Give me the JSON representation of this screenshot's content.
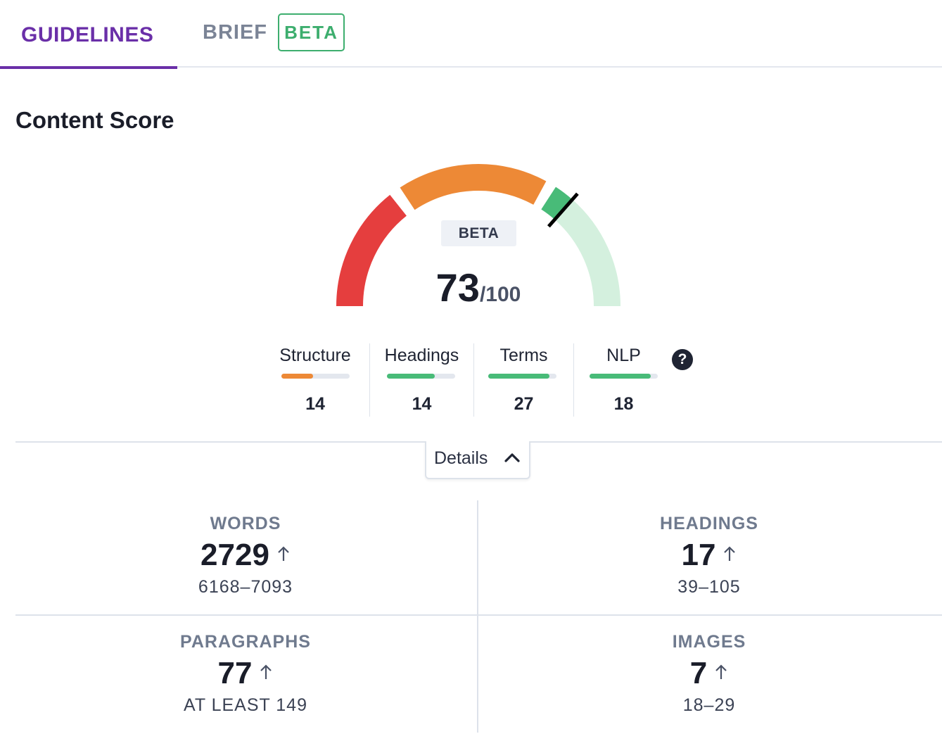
{
  "tabs": {
    "guidelines": "GUIDELINES",
    "brief": "BRIEF",
    "brief_badge": "BETA"
  },
  "content_score": {
    "title": "Content Score",
    "beta_label": "BETA",
    "score": "73",
    "max": "/100",
    "score_fraction": 0.73,
    "colors": {
      "red": "#e53e3e",
      "orange": "#ed8936",
      "green": "#48bb78",
      "light_green": "#d4f0de",
      "needle": "#000000"
    }
  },
  "categories": [
    {
      "name": "Structure",
      "value": "14",
      "fill": 0.46,
      "color": "#ed8936"
    },
    {
      "name": "Headings",
      "value": "14",
      "fill": 0.7,
      "color": "#48bb78"
    },
    {
      "name": "Terms",
      "value": "27",
      "fill": 0.9,
      "color": "#48bb78"
    },
    {
      "name": "NLP",
      "value": "18",
      "fill": 0.9,
      "color": "#48bb78"
    }
  ],
  "help_icon": "?",
  "details": {
    "label": "Details",
    "icon": "chevron-up-icon"
  },
  "stats": {
    "words": {
      "label": "WORDS",
      "value": "2729",
      "range": "6168–7093"
    },
    "headings": {
      "label": "HEADINGS",
      "value": "17",
      "range": "39–105"
    },
    "paragraphs": {
      "label": "PARAGRAPHS",
      "value": "77",
      "range": "AT LEAST 149"
    },
    "images": {
      "label": "IMAGES",
      "value": "7",
      "range": "18–29"
    }
  }
}
